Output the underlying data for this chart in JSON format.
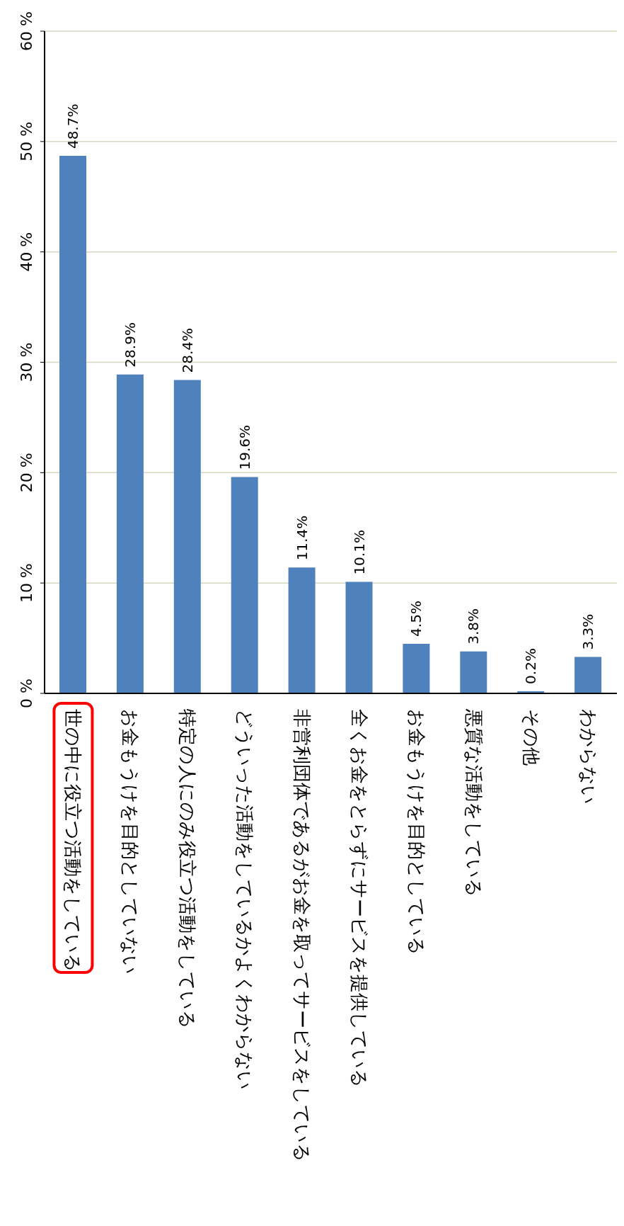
{
  "chart_data": {
    "type": "bar",
    "categories": [
      "世の中に役立つ活動をしている",
      "お金もうけを目的としていない",
      "特定の人にのみ役立つ活動をしている",
      "どういった活動をしているかよくわからない",
      "非営利団体であるがお金を取ってサービスをしている",
      "全くお金をとらずにサービスを提供している",
      "お金もうけを目的としている",
      "悪質な活動をしている",
      "その他",
      "わからない"
    ],
    "values": [
      48.7,
      28.9,
      28.4,
      19.6,
      11.4,
      10.1,
      4.5,
      3.8,
      0.2,
      3.3
    ],
    "value_labels": [
      "48.7%",
      "28.9%",
      "28.4%",
      "19.6%",
      "11.4%",
      "10.1%",
      "4.5%",
      "3.8%",
      "0.2%",
      "3.3%"
    ],
    "color": "#4f81bd",
    "ylim": [
      0,
      60
    ],
    "yticks": [
      {
        "value": 0,
        "label": "0 %"
      },
      {
        "value": 10,
        "label": "10 %"
      },
      {
        "value": 20,
        "label": "20 %"
      },
      {
        "value": 30,
        "label": "30 %"
      },
      {
        "value": 40,
        "label": "40 %"
      },
      {
        "value": 50,
        "label": "50 %"
      },
      {
        "value": 60,
        "label": "60 %"
      }
    ],
    "grid": "y"
  }
}
